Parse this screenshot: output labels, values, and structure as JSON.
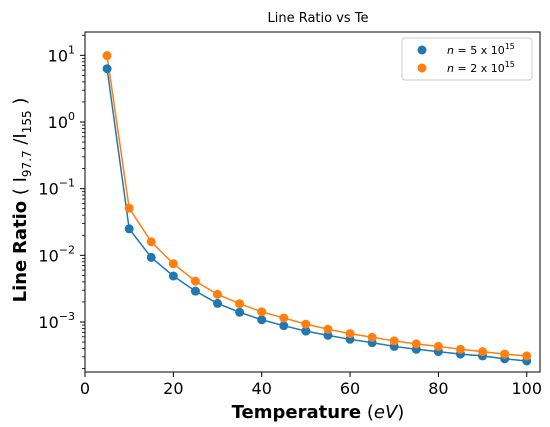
{
  "chart_data": {
    "type": "scatter",
    "title": "Line Ratio vs Te",
    "xlabel": {
      "bold": "Temperature",
      "unit": "eV"
    },
    "ylabel": {
      "bold_1": "Line",
      "bold_2": "Ratio",
      "ratio_num": "97.7",
      "ratio_den": "155"
    },
    "xlim": [
      0,
      103
    ],
    "ylim_log10": [
      -3.75,
      1.35
    ],
    "y_scale": "log",
    "grid": false,
    "legend_position": "top-right",
    "x_ticks": [
      "0",
      "20",
      "40",
      "60",
      "80",
      "100"
    ],
    "x_tick_values": [
      0,
      20,
      40,
      60,
      80,
      100
    ],
    "y_ticks": [
      {
        "exp": -3,
        "label_base": "10",
        "label_exp": "−3"
      },
      {
        "exp": -2,
        "label_base": "10",
        "label_exp": "−2"
      },
      {
        "exp": -1,
        "label_base": "10",
        "label_exp": "−1"
      },
      {
        "exp": 0,
        "label_base": "10",
        "label_exp": "0"
      },
      {
        "exp": 1,
        "label_base": "10",
        "label_exp": "1"
      }
    ],
    "x": [
      5,
      10,
      15,
      20,
      25,
      30,
      35,
      40,
      45,
      50,
      55,
      60,
      65,
      70,
      75,
      80,
      85,
      90,
      95,
      100
    ],
    "series": [
      {
        "name": "n = 5 x 10^15",
        "legend_n": "n",
        "legend_rest": " = 5 x 10",
        "legend_exp": "15",
        "color": "#1f77b4",
        "values": [
          6.3,
          0.025,
          0.0093,
          0.0049,
          0.0029,
          0.0019,
          0.0014,
          0.00108,
          0.00088,
          0.00073,
          0.00063,
          0.00055,
          0.00049,
          0.00043,
          0.00039,
          0.00036,
          0.00033,
          0.00031,
          0.00028,
          0.00026
        ]
      },
      {
        "name": "n = 2 x 10^15",
        "legend_n": "n",
        "legend_rest": " = 2 x 10",
        "legend_exp": "15",
        "color": "#ff7f0e",
        "values": [
          9.9,
          0.051,
          0.016,
          0.0075,
          0.0041,
          0.0026,
          0.00188,
          0.00142,
          0.00115,
          0.00093,
          0.00078,
          0.00067,
          0.00059,
          0.00052,
          0.00047,
          0.00043,
          0.00039,
          0.00036,
          0.00033,
          0.00031
        ]
      }
    ]
  }
}
